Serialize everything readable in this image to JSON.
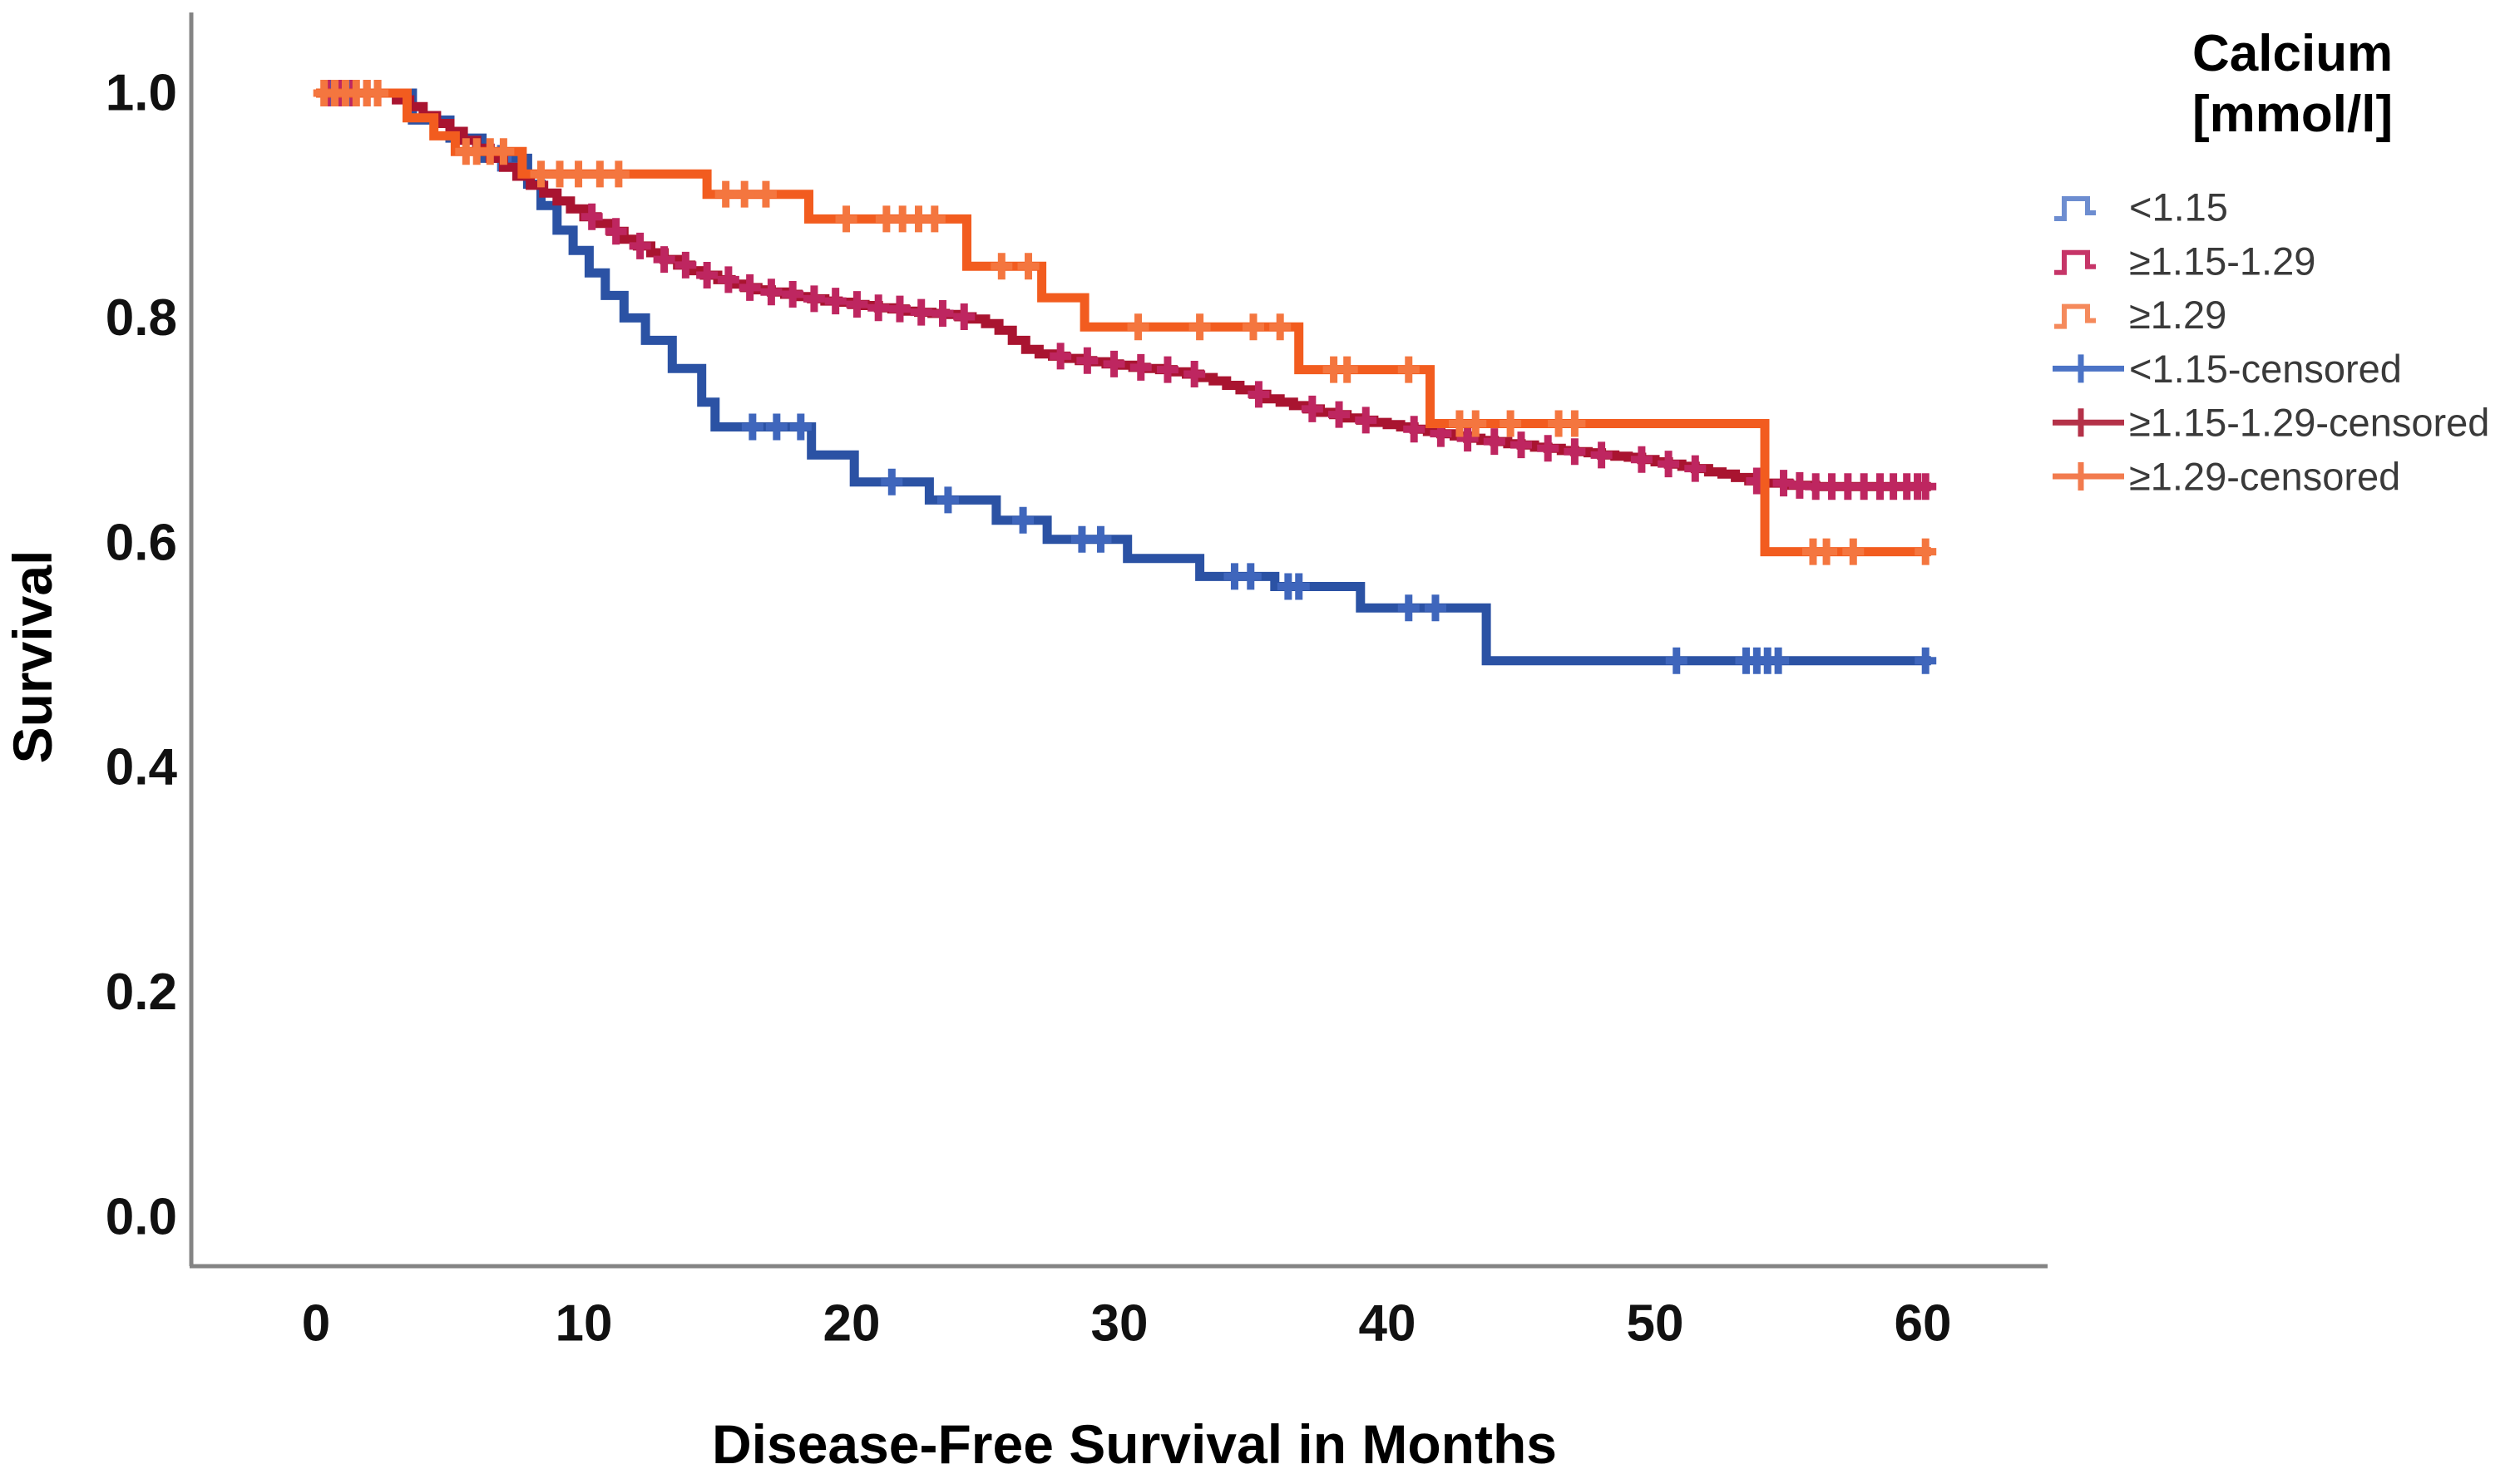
{
  "chart_data": {
    "type": "line",
    "subtype": "kaplan-meier-step",
    "title": "",
    "xlabel": "Disease-Free Survival in Months",
    "ylabel": "Survival",
    "legend_title_line1": "Calcium",
    "legend_title_line2": "[mmol/l]",
    "legend_position": "right",
    "grid": false,
    "x_ticks": [
      0,
      10,
      20,
      30,
      40,
      50,
      60
    ],
    "y_ticks": [
      "0.0",
      "0.2",
      "0.4",
      "0.6",
      "0.8",
      "1.0"
    ],
    "xlim": [
      -4.7,
      64.7
    ],
    "ylim": [
      -0.04,
      1.07
    ],
    "axis_color": "#848484",
    "series": [
      {
        "name": "<1.15",
        "line_color": "#2B52A4",
        "censor_color": "#3F66BC",
        "legend_line_color": "#6D8DD0",
        "legend_censor_color": "#4B73C6",
        "steps": [
          [
            0,
            1.0
          ],
          [
            3.6,
            0.976
          ],
          [
            5.0,
            0.96
          ],
          [
            6.2,
            0.942
          ],
          [
            7.9,
            0.919
          ],
          [
            8.4,
            0.9
          ],
          [
            9.0,
            0.878
          ],
          [
            9.6,
            0.86
          ],
          [
            10.2,
            0.84
          ],
          [
            10.8,
            0.82
          ],
          [
            11.5,
            0.8
          ],
          [
            12.3,
            0.78
          ],
          [
            13.3,
            0.755
          ],
          [
            14.4,
            0.725
          ],
          [
            14.9,
            0.703
          ],
          [
            18.5,
            0.678
          ],
          [
            20.1,
            0.654
          ],
          [
            22.9,
            0.638
          ],
          [
            25.4,
            0.62
          ],
          [
            27.3,
            0.603
          ],
          [
            30.3,
            0.586
          ],
          [
            33.0,
            0.57
          ],
          [
            35.8,
            0.561
          ],
          [
            39.0,
            0.542
          ],
          [
            43.7,
            0.495
          ],
          [
            60.3,
            0.495
          ]
        ],
        "censor_months": [
          0.6,
          1.2,
          6.9,
          16.3,
          17.2,
          18.1,
          21.5,
          23.6,
          26.4,
          28.6,
          29.3,
          34.3,
          34.9,
          36.3,
          36.7,
          40.8,
          41.8,
          50.8,
          53.4,
          53.8,
          54.2,
          54.6,
          60.1
        ]
      },
      {
        "name": "≥1.15-1.29",
        "line_color": "#A91430",
        "censor_color": "#BE2660",
        "legend_line_color": "#C63568",
        "legend_censor_color": "#B43148",
        "steps": [
          [
            0,
            1.0
          ],
          [
            2.6,
            1.0
          ],
          [
            3.0,
            0.994
          ],
          [
            3.5,
            0.988
          ],
          [
            4.0,
            0.98
          ],
          [
            4.5,
            0.973
          ],
          [
            5.0,
            0.966
          ],
          [
            5.5,
            0.958
          ],
          [
            6.0,
            0.951
          ],
          [
            6.5,
            0.942
          ],
          [
            7.0,
            0.934
          ],
          [
            7.5,
            0.926
          ],
          [
            8.0,
            0.918
          ],
          [
            8.5,
            0.911
          ],
          [
            9.0,
            0.904
          ],
          [
            9.5,
            0.897
          ],
          [
            10.0,
            0.89
          ],
          [
            10.5,
            0.884
          ],
          [
            11.0,
            0.877
          ],
          [
            11.5,
            0.87
          ],
          [
            12.0,
            0.864
          ],
          [
            12.5,
            0.858
          ],
          [
            13.0,
            0.852
          ],
          [
            13.5,
            0.847
          ],
          [
            14.0,
            0.842
          ],
          [
            14.5,
            0.838
          ],
          [
            15.0,
            0.834
          ],
          [
            15.5,
            0.83
          ],
          [
            16.0,
            0.827
          ],
          [
            16.5,
            0.825
          ],
          [
            17.0,
            0.823
          ],
          [
            17.5,
            0.821
          ],
          [
            18.0,
            0.819
          ],
          [
            18.5,
            0.817
          ],
          [
            19.0,
            0.815
          ],
          [
            19.5,
            0.814
          ],
          [
            20.0,
            0.812
          ],
          [
            20.5,
            0.811
          ],
          [
            21.0,
            0.809
          ],
          [
            21.5,
            0.808
          ],
          [
            22.0,
            0.806
          ],
          [
            22.5,
            0.805
          ],
          [
            23.0,
            0.804
          ],
          [
            23.5,
            0.803
          ],
          [
            24.0,
            0.801
          ],
          [
            24.5,
            0.799
          ],
          [
            25.0,
            0.795
          ],
          [
            25.5,
            0.789
          ],
          [
            26.0,
            0.78
          ],
          [
            26.5,
            0.772
          ],
          [
            27.0,
            0.768
          ],
          [
            27.5,
            0.766
          ],
          [
            28.0,
            0.764
          ],
          [
            28.5,
            0.762
          ],
          [
            29.0,
            0.761
          ],
          [
            29.5,
            0.759
          ],
          [
            30.0,
            0.758
          ],
          [
            30.5,
            0.756
          ],
          [
            31.0,
            0.755
          ],
          [
            31.5,
            0.754
          ],
          [
            32.0,
            0.752
          ],
          [
            32.5,
            0.75
          ],
          [
            33.0,
            0.747
          ],
          [
            33.5,
            0.744
          ],
          [
            34.0,
            0.74
          ],
          [
            34.5,
            0.736
          ],
          [
            35.0,
            0.732
          ],
          [
            35.5,
            0.728
          ],
          [
            36.0,
            0.725
          ],
          [
            36.5,
            0.722
          ],
          [
            37.0,
            0.719
          ],
          [
            37.5,
            0.716
          ],
          [
            38.0,
            0.714
          ],
          [
            38.5,
            0.711
          ],
          [
            39.0,
            0.709
          ],
          [
            39.5,
            0.707
          ],
          [
            40.0,
            0.705
          ],
          [
            40.5,
            0.703
          ],
          [
            41.0,
            0.701
          ],
          [
            41.5,
            0.699
          ],
          [
            42.0,
            0.697
          ],
          [
            42.5,
            0.695
          ],
          [
            43.0,
            0.693
          ],
          [
            43.5,
            0.691
          ],
          [
            44.0,
            0.69
          ],
          [
            44.5,
            0.688
          ],
          [
            45.0,
            0.687
          ],
          [
            45.5,
            0.685
          ],
          [
            46.0,
            0.684
          ],
          [
            46.5,
            0.682
          ],
          [
            47.0,
            0.681
          ],
          [
            47.5,
            0.68
          ],
          [
            48.0,
            0.678
          ],
          [
            48.5,
            0.677
          ],
          [
            49.0,
            0.676
          ],
          [
            49.5,
            0.674
          ],
          [
            50.0,
            0.672
          ],
          [
            50.5,
            0.67
          ],
          [
            51.0,
            0.668
          ],
          [
            51.5,
            0.666
          ],
          [
            52.0,
            0.663
          ],
          [
            52.5,
            0.661
          ],
          [
            53.0,
            0.658
          ],
          [
            53.5,
            0.655
          ],
          [
            54.0,
            0.653
          ],
          [
            55.0,
            0.651
          ],
          [
            56.0,
            0.65
          ],
          [
            60.3,
            0.65
          ]
        ],
        "censor_months": [
          0.4,
          0.9,
          1.4,
          1.9,
          2.3,
          10.3,
          11.2,
          12.1,
          13.0,
          13.8,
          14.6,
          15.4,
          16.2,
          17.0,
          17.8,
          18.6,
          19.4,
          20.2,
          21.0,
          21.8,
          22.6,
          23.4,
          24.2,
          27.8,
          28.8,
          29.8,
          30.8,
          31.8,
          32.8,
          35.2,
          37.2,
          38.2,
          39.2,
          41.0,
          42.0,
          43.0,
          44.0,
          45.0,
          46.0,
          47.0,
          48.0,
          49.5,
          50.5,
          51.5,
          53.8,
          54.8,
          55.4,
          56.0,
          56.6,
          57.2,
          57.8,
          58.4,
          58.9,
          59.4,
          59.8,
          60.1
        ]
      },
      {
        "name": "≥1.29",
        "line_color": "#F25C1F",
        "censor_color": "#F4763F",
        "legend_line_color": "#F58A5C",
        "legend_censor_color": "#F27B4E",
        "steps": [
          [
            0,
            1.0
          ],
          [
            3.4,
            0.978
          ],
          [
            4.4,
            0.962
          ],
          [
            5.2,
            0.948
          ],
          [
            7.7,
            0.928
          ],
          [
            14.6,
            0.91
          ],
          [
            18.4,
            0.888
          ],
          [
            24.3,
            0.846
          ],
          [
            27.1,
            0.818
          ],
          [
            28.7,
            0.792
          ],
          [
            36.7,
            0.754
          ],
          [
            41.6,
            0.706
          ],
          [
            54.1,
            0.592
          ],
          [
            60.3,
            0.592
          ]
        ],
        "censor_months": [
          0.3,
          0.7,
          1.1,
          1.5,
          1.9,
          2.3,
          5.6,
          6.0,
          6.5,
          7.0,
          8.4,
          9.1,
          9.8,
          10.6,
          11.3,
          15.3,
          16.0,
          16.8,
          19.8,
          21.3,
          21.9,
          22.5,
          23.1,
          25.6,
          26.6,
          30.7,
          33.0,
          35.0,
          36.0,
          38.0,
          38.5,
          40.8,
          42.7,
          43.3,
          44.6,
          46.4,
          47.0,
          55.9,
          56.4,
          57.4,
          60.1
        ]
      }
    ],
    "legend_entries": [
      {
        "label": "<1.15",
        "symbol": "step",
        "series": 0
      },
      {
        "label": "≥1.15-1.29",
        "symbol": "step",
        "series": 1
      },
      {
        "label": "≥1.29",
        "symbol": "step",
        "series": 2
      },
      {
        "label": "<1.15-censored",
        "symbol": "plus",
        "series": 0
      },
      {
        "label": "≥1.15-1.29-censored",
        "symbol": "plus",
        "series": 1
      },
      {
        "label": "≥1.29-censored",
        "symbol": "plus",
        "series": 2
      }
    ]
  }
}
